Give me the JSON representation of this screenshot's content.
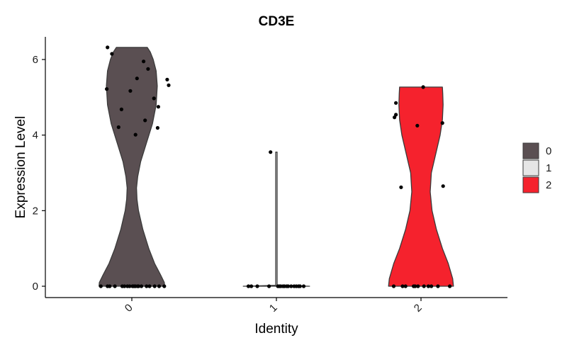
{
  "chart_data": {
    "type": "violin",
    "title": "CD3E",
    "xlabel": "Identity",
    "ylabel": "Expression Level",
    "categories": [
      "0",
      "1",
      "2"
    ],
    "ylim": [
      -0.3,
      6.6
    ],
    "yticks": [
      0,
      2,
      4,
      6
    ],
    "legend": {
      "position": "right",
      "entries": [
        "0",
        "1",
        "2"
      ]
    },
    "colors": {
      "0": "#5a4f52",
      "1": "#e6e6e6",
      "2": "#f5222d"
    },
    "series": [
      {
        "name": "0",
        "max": 6.32,
        "points": [
          {
            "x": -0.33,
            "y": 6.32
          },
          {
            "x": -0.27,
            "y": 6.15
          },
          {
            "x": -0.34,
            "y": 5.22
          },
          {
            "x": -0.14,
            "y": 4.68
          },
          {
            "x": -0.18,
            "y": 4.21
          },
          {
            "x": -0.02,
            "y": 5.17
          },
          {
            "x": 0.07,
            "y": 5.5
          },
          {
            "x": 0.16,
            "y": 5.95
          },
          {
            "x": 0.22,
            "y": 5.75
          },
          {
            "x": 0.05,
            "y": 4.01
          },
          {
            "x": 0.18,
            "y": 4.39
          },
          {
            "x": 0.3,
            "y": 4.97
          },
          {
            "x": 0.36,
            "y": 4.75
          },
          {
            "x": 0.35,
            "y": 4.19
          },
          {
            "x": 0.48,
            "y": 5.47
          },
          {
            "x": 0.5,
            "y": 5.32
          },
          {
            "x": -0.42,
            "y": 0
          },
          {
            "x": -0.33,
            "y": 0
          },
          {
            "x": -0.3,
            "y": 0
          },
          {
            "x": -0.23,
            "y": 0
          },
          {
            "x": -0.13,
            "y": 0
          },
          {
            "x": -0.1,
            "y": 0
          },
          {
            "x": -0.06,
            "y": 0
          },
          {
            "x": -0.03,
            "y": 0
          },
          {
            "x": 0.01,
            "y": 0
          },
          {
            "x": 0.03,
            "y": 0
          },
          {
            "x": 0.05,
            "y": 0
          },
          {
            "x": 0.08,
            "y": 0
          },
          {
            "x": 0.09,
            "y": 0
          },
          {
            "x": 0.13,
            "y": 0
          },
          {
            "x": 0.2,
            "y": 0
          },
          {
            "x": 0.24,
            "y": 0
          },
          {
            "x": 0.31,
            "y": 0
          },
          {
            "x": 0.37,
            "y": 0
          },
          {
            "x": 0.44,
            "y": 0
          }
        ]
      },
      {
        "name": "1",
        "max": 3.55,
        "points": [
          {
            "x": -0.08,
            "y": 3.55
          },
          {
            "x": -0.38,
            "y": 0
          },
          {
            "x": -0.34,
            "y": 0
          },
          {
            "x": -0.26,
            "y": 0
          },
          {
            "x": -0.1,
            "y": 0
          },
          {
            "x": 0.02,
            "y": 0
          },
          {
            "x": 0.04,
            "y": 0
          },
          {
            "x": 0.06,
            "y": 0
          },
          {
            "x": 0.09,
            "y": 0
          },
          {
            "x": 0.11,
            "y": 0
          },
          {
            "x": 0.14,
            "y": 0
          },
          {
            "x": 0.16,
            "y": 0
          },
          {
            "x": 0.2,
            "y": 0
          },
          {
            "x": 0.24,
            "y": 0
          },
          {
            "x": 0.27,
            "y": 0
          },
          {
            "x": 0.3,
            "y": 0
          },
          {
            "x": 0.32,
            "y": 0
          },
          {
            "x": 0.37,
            "y": 0
          }
        ]
      },
      {
        "name": "2",
        "max": 5.27,
        "points": [
          {
            "x": -0.34,
            "y": 4.85
          },
          {
            "x": -0.34,
            "y": 4.54
          },
          {
            "x": -0.36,
            "y": 4.47
          },
          {
            "x": -0.27,
            "y": 2.62
          },
          {
            "x": -0.05,
            "y": 4.25
          },
          {
            "x": 0.03,
            "y": 5.27
          },
          {
            "x": 0.29,
            "y": 4.32
          },
          {
            "x": 0.3,
            "y": 2.65
          },
          {
            "x": -0.37,
            "y": 0
          },
          {
            "x": -0.25,
            "y": 0
          },
          {
            "x": -0.21,
            "y": 0
          },
          {
            "x": -0.1,
            "y": 0
          },
          {
            "x": -0.08,
            "y": 0
          },
          {
            "x": -0.04,
            "y": 0
          },
          {
            "x": 0.04,
            "y": 0
          },
          {
            "x": 0.1,
            "y": 0
          },
          {
            "x": 0.14,
            "y": 0
          },
          {
            "x": 0.23,
            "y": 0
          },
          {
            "x": 0.39,
            "y": 0
          }
        ]
      }
    ],
    "violin_shapes": [
      {
        "category": "0",
        "profile": [
          {
            "y": 0,
            "hw": 0.445
          },
          {
            "y": 0.1,
            "hw": 0.44
          },
          {
            "y": 0.3,
            "hw": 0.39
          },
          {
            "y": 0.6,
            "hw": 0.31
          },
          {
            "y": 1.0,
            "hw": 0.23
          },
          {
            "y": 1.5,
            "hw": 0.15
          },
          {
            "y": 2.0,
            "hw": 0.09
          },
          {
            "y": 2.3,
            "hw": 0.07
          },
          {
            "y": 2.6,
            "hw": 0.063
          },
          {
            "y": 2.9,
            "hw": 0.08
          },
          {
            "y": 3.3,
            "hw": 0.12
          },
          {
            "y": 3.8,
            "hw": 0.2
          },
          {
            "y": 4.3,
            "hw": 0.28
          },
          {
            "y": 4.8,
            "hw": 0.33
          },
          {
            "y": 5.3,
            "hw": 0.345
          },
          {
            "y": 5.7,
            "hw": 0.33
          },
          {
            "y": 6.0,
            "hw": 0.29
          },
          {
            "y": 6.2,
            "hw": 0.25
          },
          {
            "y": 6.32,
            "hw": 0.21
          }
        ]
      },
      {
        "category": "1",
        "profile": [
          {
            "y": 0,
            "hw": 0.45
          },
          {
            "y": 0.025,
            "hw": 0.01
          },
          {
            "y": 3.55,
            "hw": 0.01
          }
        ]
      },
      {
        "category": "2",
        "profile": [
          {
            "y": 0,
            "hw": 0.44
          },
          {
            "y": 0.2,
            "hw": 0.43
          },
          {
            "y": 0.6,
            "hw": 0.37
          },
          {
            "y": 1.0,
            "hw": 0.29
          },
          {
            "y": 1.5,
            "hw": 0.21
          },
          {
            "y": 2.0,
            "hw": 0.15
          },
          {
            "y": 2.5,
            "hw": 0.125
          },
          {
            "y": 3.0,
            "hw": 0.14
          },
          {
            "y": 3.5,
            "hw": 0.2
          },
          {
            "y": 4.0,
            "hw": 0.26
          },
          {
            "y": 4.4,
            "hw": 0.29
          },
          {
            "y": 4.8,
            "hw": 0.3
          },
          {
            "y": 5.1,
            "hw": 0.295
          },
          {
            "y": 5.27,
            "hw": 0.29
          }
        ]
      }
    ]
  }
}
